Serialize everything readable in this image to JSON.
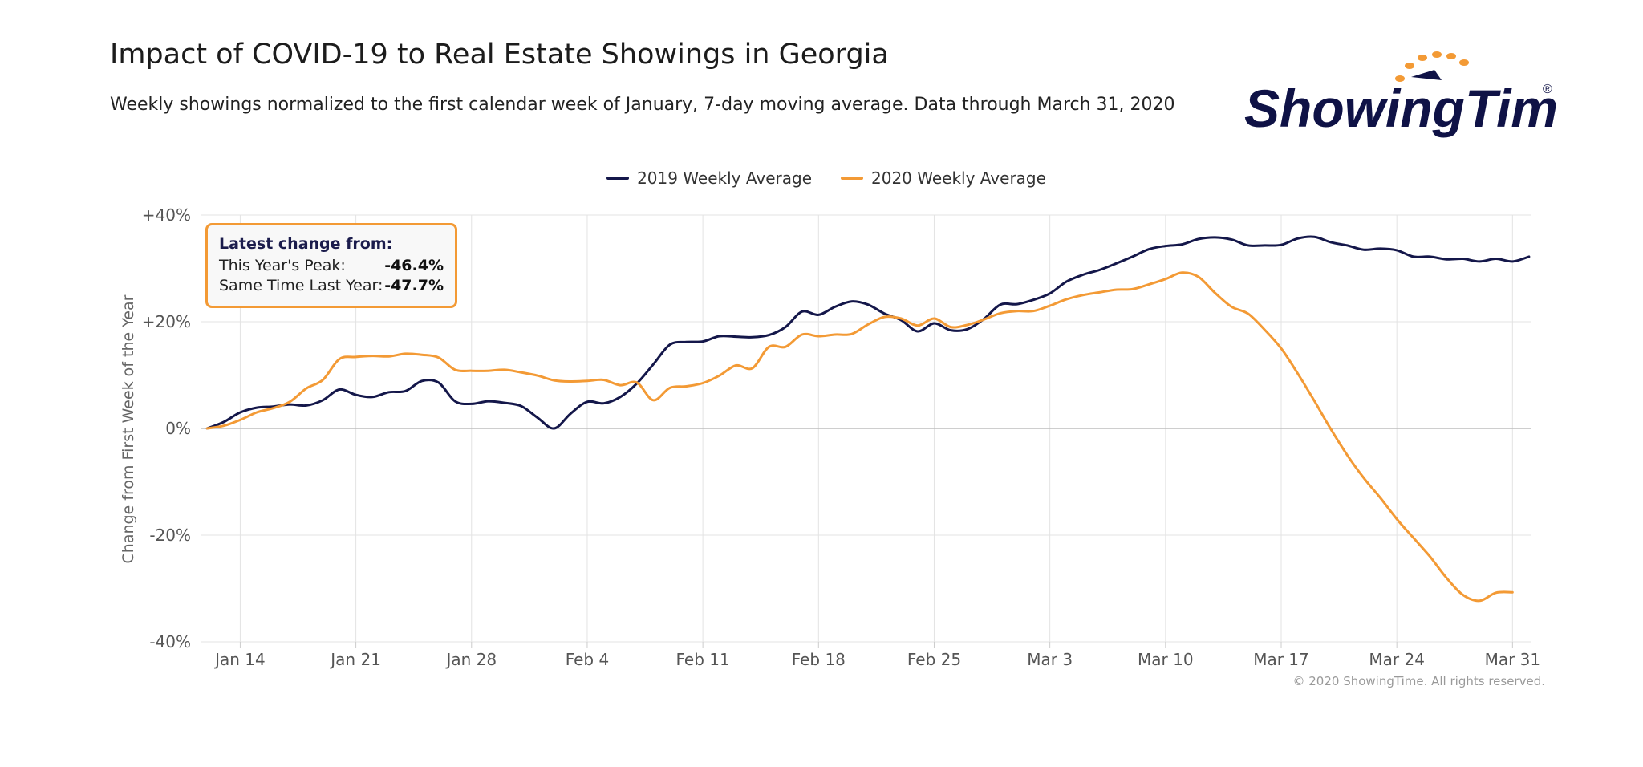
{
  "header": {
    "title": "Impact of COVID-19 to Real Estate Showings in Georgia",
    "subtitle": "Weekly showings normalized to the first calendar week of January, 7-day moving average. Data through March 31, 2020"
  },
  "brand": {
    "logo_text": "ShowingTime",
    "registered": "®",
    "logo_color": "#0f1246",
    "dot_color": "#f39a35"
  },
  "info_box": {
    "heading": "Latest change from:",
    "rows": [
      {
        "label": "This Year's Peak:",
        "value": "-46.4%"
      },
      {
        "label": "Same Time Last Year:",
        "value": "-47.7%"
      }
    ]
  },
  "footer": {
    "copyright": "© 2020 ShowingTime. All rights reserved."
  },
  "chart_data": {
    "type": "line",
    "title": "Impact of COVID-19 to Real Estate Showings in Georgia",
    "ylabel": "Change from First Week of the Year",
    "xlabel": "",
    "ylim": [
      -40,
      40
    ],
    "xlim": [
      -0.4,
      80.1
    ],
    "grid": true,
    "legend_position": "top-center",
    "y_ticks": [
      {
        "value": 40,
        "label": "+40%"
      },
      {
        "value": 20,
        "label": "+20%"
      },
      {
        "value": 0,
        "label": "0%"
      },
      {
        "value": -20,
        "label": "-20%"
      },
      {
        "value": -40,
        "label": "-40%"
      }
    ],
    "x_ticks": [
      {
        "day": 2,
        "label": "Jan 14"
      },
      {
        "day": 9,
        "label": "Jan 21"
      },
      {
        "day": 16,
        "label": "Jan 28"
      },
      {
        "day": 23,
        "label": "Feb 4"
      },
      {
        "day": 30,
        "label": "Feb 11"
      },
      {
        "day": 37,
        "label": "Feb 18"
      },
      {
        "day": 44,
        "label": "Feb 25"
      },
      {
        "day": 51,
        "label": "Mar 3"
      },
      {
        "day": 58,
        "label": "Mar 10"
      },
      {
        "day": 65,
        "label": "Mar 17"
      },
      {
        "day": 72,
        "label": "Mar 24"
      },
      {
        "day": 79,
        "label": "Mar 31"
      }
    ],
    "series": [
      {
        "name": "2019 Weekly Average",
        "color": "#14174a",
        "points": [
          [
            0,
            0
          ],
          [
            1,
            1.2
          ],
          [
            2,
            3
          ],
          [
            3,
            3.9
          ],
          [
            4,
            4.1
          ],
          [
            5,
            4.5
          ],
          [
            6,
            4.3
          ],
          [
            7,
            5.3
          ],
          [
            8,
            7.3
          ],
          [
            9,
            6.3
          ],
          [
            10,
            5.9
          ],
          [
            11,
            6.8
          ],
          [
            12,
            7
          ],
          [
            13,
            8.9
          ],
          [
            14,
            8.6
          ],
          [
            15,
            5.1
          ],
          [
            16,
            4.6
          ],
          [
            17,
            5.1
          ],
          [
            18,
            4.8
          ],
          [
            19,
            4.2
          ],
          [
            20,
            2
          ],
          [
            21,
            0
          ],
          [
            22,
            2.8
          ],
          [
            23,
            5
          ],
          [
            24,
            4.7
          ],
          [
            25,
            5.9
          ],
          [
            26,
            8.4
          ],
          [
            27,
            12
          ],
          [
            28,
            15.7
          ],
          [
            29,
            16.2
          ],
          [
            30,
            16.3
          ],
          [
            31,
            17.3
          ],
          [
            32,
            17.2
          ],
          [
            33,
            17.1
          ],
          [
            34,
            17.5
          ],
          [
            35,
            19
          ],
          [
            36,
            21.9
          ],
          [
            37,
            21.3
          ],
          [
            38,
            22.8
          ],
          [
            39,
            23.8
          ],
          [
            40,
            23.2
          ],
          [
            41,
            21.5
          ],
          [
            42,
            20.3
          ],
          [
            43,
            18.2
          ],
          [
            44,
            19.7
          ],
          [
            45,
            18.4
          ],
          [
            46,
            18.6
          ],
          [
            47,
            20.5
          ],
          [
            48,
            23.2
          ],
          [
            49,
            23.3
          ],
          [
            50,
            24.1
          ],
          [
            51,
            25.3
          ],
          [
            52,
            27.5
          ],
          [
            53,
            28.8
          ],
          [
            54,
            29.7
          ],
          [
            55,
            30.9
          ],
          [
            56,
            32.2
          ],
          [
            57,
            33.6
          ],
          [
            58,
            34.2
          ],
          [
            59,
            34.5
          ],
          [
            60,
            35.5
          ],
          [
            61,
            35.8
          ],
          [
            62,
            35.4
          ],
          [
            63,
            34.3
          ],
          [
            64,
            34.3
          ],
          [
            65,
            34.4
          ],
          [
            66,
            35.6
          ],
          [
            67,
            35.9
          ],
          [
            68,
            34.9
          ],
          [
            69,
            34.3
          ],
          [
            70,
            33.5
          ],
          [
            71,
            33.7
          ],
          [
            72,
            33.4
          ],
          [
            73,
            32.2
          ],
          [
            74,
            32.2
          ],
          [
            75,
            31.7
          ],
          [
            76,
            31.8
          ],
          [
            77,
            31.3
          ],
          [
            78,
            31.8
          ],
          [
            79,
            31.3
          ],
          [
            80,
            32.2
          ]
        ]
      },
      {
        "name": "2020 Weekly Average",
        "color": "#f39a35",
        "points": [
          [
            0,
            0
          ],
          [
            1,
            0.5
          ],
          [
            2,
            1.6
          ],
          [
            3,
            3
          ],
          [
            4,
            3.8
          ],
          [
            5,
            5
          ],
          [
            6,
            7.5
          ],
          [
            7,
            9.1
          ],
          [
            8,
            13
          ],
          [
            9,
            13.4
          ],
          [
            10,
            13.6
          ],
          [
            11,
            13.5
          ],
          [
            12,
            14
          ],
          [
            13,
            13.8
          ],
          [
            14,
            13.3
          ],
          [
            15,
            11
          ],
          [
            16,
            10.8
          ],
          [
            17,
            10.8
          ],
          [
            18,
            11
          ],
          [
            19,
            10.5
          ],
          [
            20,
            9.9
          ],
          [
            21,
            9
          ],
          [
            22,
            8.8
          ],
          [
            23,
            8.9
          ],
          [
            24,
            9.1
          ],
          [
            25,
            8.1
          ],
          [
            26,
            8.6
          ],
          [
            27,
            5.3
          ],
          [
            28,
            7.6
          ],
          [
            29,
            7.9
          ],
          [
            30,
            8.5
          ],
          [
            31,
            9.9
          ],
          [
            32,
            11.8
          ],
          [
            33,
            11.3
          ],
          [
            34,
            15.3
          ],
          [
            35,
            15.3
          ],
          [
            36,
            17.6
          ],
          [
            37,
            17.3
          ],
          [
            38,
            17.6
          ],
          [
            39,
            17.7
          ],
          [
            40,
            19.5
          ],
          [
            41,
            20.9
          ],
          [
            42,
            20.6
          ],
          [
            43,
            19.3
          ],
          [
            44,
            20.6
          ],
          [
            45,
            19
          ],
          [
            46,
            19.4
          ],
          [
            47,
            20.4
          ],
          [
            48,
            21.6
          ],
          [
            49,
            22
          ],
          [
            50,
            22
          ],
          [
            51,
            23
          ],
          [
            52,
            24.2
          ],
          [
            53,
            25
          ],
          [
            54,
            25.5
          ],
          [
            55,
            26
          ],
          [
            56,
            26.1
          ],
          [
            57,
            27
          ],
          [
            58,
            28
          ],
          [
            59,
            29.2
          ],
          [
            60,
            28.4
          ],
          [
            61,
            25.4
          ],
          [
            62,
            22.8
          ],
          [
            63,
            21.5
          ],
          [
            64,
            18.5
          ],
          [
            65,
            15
          ],
          [
            66,
            10.3
          ],
          [
            67,
            5.2
          ],
          [
            68,
            -0.1
          ],
          [
            69,
            -5
          ],
          [
            70,
            -9.3
          ],
          [
            71,
            -13
          ],
          [
            72,
            -17
          ],
          [
            73,
            -20.5
          ],
          [
            74,
            -24
          ],
          [
            75,
            -28
          ],
          [
            76,
            -31.2
          ],
          [
            77,
            -32.3
          ],
          [
            78,
            -30.8
          ],
          [
            79,
            -30.7
          ]
        ]
      }
    ]
  }
}
